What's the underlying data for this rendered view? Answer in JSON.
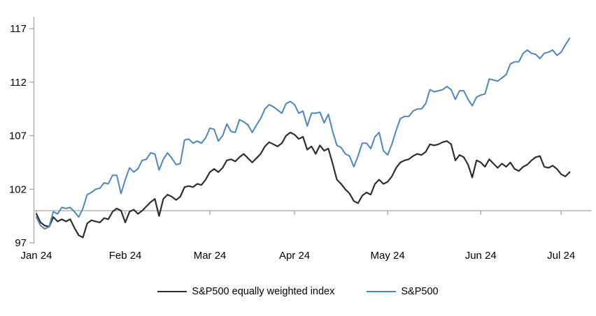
{
  "chart_data": {
    "type": "line",
    "title": "",
    "xlabel": "",
    "ylabel": "",
    "grid": false,
    "legend_position": "bottom",
    "background": "#ffffff",
    "axis_color": "#a6a6a6",
    "text_color": "#000000",
    "y_axis": {
      "tick_values": [
        97,
        102,
        107,
        112,
        117
      ],
      "tick_labels": [
        "97",
        "102",
        "107",
        "112",
        "117"
      ],
      "min": 96.9,
      "max": 118.1,
      "baseline_value": 100
    },
    "x_axis": {
      "tick_labels": [
        "Jan 24",
        "Feb 24",
        "Mar 24",
        "Apr 24",
        "May 24",
        "Jun 24",
        "Jul 24"
      ],
      "tick_point_indices": [
        0,
        21,
        41,
        61,
        83,
        105,
        124
      ]
    },
    "dates": [
      "01-02",
      "01-03",
      "01-04",
      "01-05",
      "01-08",
      "01-09",
      "01-10",
      "01-11",
      "01-12",
      "01-16",
      "01-17",
      "01-18",
      "01-19",
      "01-22",
      "01-23",
      "01-24",
      "01-25",
      "01-26",
      "01-29",
      "01-30",
      "01-31",
      "02-01",
      "02-02",
      "02-05",
      "02-06",
      "02-07",
      "02-08",
      "02-09",
      "02-12",
      "02-13",
      "02-14",
      "02-15",
      "02-16",
      "02-20",
      "02-21",
      "02-22",
      "02-23",
      "02-26",
      "02-27",
      "02-28",
      "02-29",
      "03-01",
      "03-04",
      "03-05",
      "03-06",
      "03-07",
      "03-08",
      "03-11",
      "03-12",
      "03-13",
      "03-14",
      "03-15",
      "03-18",
      "03-19",
      "03-20",
      "03-21",
      "03-22",
      "03-25",
      "03-26",
      "03-27",
      "03-28",
      "04-01",
      "04-02",
      "04-03",
      "04-04",
      "04-05",
      "04-08",
      "04-09",
      "04-10",
      "04-11",
      "04-12",
      "04-15",
      "04-16",
      "04-17",
      "04-18",
      "04-19",
      "04-22",
      "04-23",
      "04-24",
      "04-25",
      "04-26",
      "04-29",
      "04-30",
      "05-01",
      "05-02",
      "05-03",
      "05-06",
      "05-07",
      "05-08",
      "05-09",
      "05-10",
      "05-13",
      "05-14",
      "05-15",
      "05-16",
      "05-17",
      "05-20",
      "05-21",
      "05-22",
      "05-23",
      "05-24",
      "05-28",
      "05-29",
      "05-30",
      "05-31",
      "06-03",
      "06-04",
      "06-05",
      "06-06",
      "06-07",
      "06-10",
      "06-11",
      "06-12",
      "06-13",
      "06-14",
      "06-17",
      "06-18",
      "06-20",
      "06-21",
      "06-24",
      "06-25",
      "06-26",
      "06-27",
      "06-28",
      "07-01",
      "07-02",
      "07-03"
    ],
    "series": [
      {
        "name": "S&P500 equally weighted index",
        "color": "#2f2f2f",
        "stroke_width": 2.2,
        "values": [
          99.7,
          98.9,
          98.6,
          98.5,
          99.4,
          99.0,
          99.2,
          99.0,
          99.2,
          98.4,
          97.7,
          97.5,
          98.8,
          99.1,
          99.0,
          98.9,
          99.3,
          99.2,
          99.9,
          100.2,
          100.0,
          98.9,
          99.9,
          100.1,
          99.7,
          100.0,
          100.4,
          100.8,
          101.1,
          99.5,
          101.1,
          101.5,
          101.3,
          101.0,
          101.3,
          102.2,
          102.3,
          102.2,
          102.5,
          102.4,
          102.9,
          103.6,
          103.9,
          103.6,
          104.0,
          104.7,
          104.8,
          104.6,
          105.0,
          105.3,
          104.9,
          104.5,
          104.9,
          105.3,
          106.0,
          106.4,
          106.2,
          106.0,
          106.3,
          107.0,
          107.3,
          107.1,
          106.7,
          106.9,
          105.7,
          106.0,
          105.3,
          106.1,
          105.6,
          105.8,
          104.4,
          102.9,
          102.5,
          102.0,
          101.6,
          100.9,
          100.7,
          101.4,
          101.7,
          101.5,
          102.5,
          102.9,
          102.5,
          102.7,
          103.2,
          104.0,
          104.5,
          104.7,
          104.8,
          105.1,
          105.3,
          105.2,
          105.5,
          106.2,
          106.1,
          106.2,
          106.4,
          106.5,
          106.2,
          104.7,
          105.2,
          105.0,
          104.3,
          103.1,
          104.7,
          104.5,
          104.1,
          104.8,
          104.4,
          104.0,
          104.4,
          104.1,
          104.5,
          103.9,
          103.7,
          104.1,
          104.3,
          104.7,
          105.0,
          105.1,
          104.1,
          104.0,
          104.2,
          103.9,
          103.4,
          103.2,
          103.6
        ]
      },
      {
        "name": "S&P500",
        "color": "#4f86bd",
        "stroke_width": 2.0,
        "values": [
          99.4,
          98.6,
          98.3,
          98.5,
          99.9,
          99.7,
          100.3,
          100.2,
          100.3,
          99.9,
          99.4,
          100.2,
          101.5,
          101.7,
          102.0,
          102.1,
          102.6,
          102.5,
          103.3,
          103.3,
          101.6,
          102.9,
          104.0,
          103.6,
          103.9,
          104.7,
          104.8,
          105.4,
          105.3,
          103.8,
          104.8,
          105.4,
          104.9,
          104.3,
          104.4,
          106.6,
          106.7,
          106.3,
          106.5,
          106.3,
          106.8,
          107.7,
          107.6,
          106.5,
          107.0,
          108.1,
          107.4,
          107.3,
          108.5,
          108.3,
          108.0,
          107.3,
          108.0,
          108.6,
          109.5,
          109.9,
          109.7,
          109.4,
          109.1,
          110.0,
          110.2,
          109.9,
          109.1,
          109.3,
          107.9,
          109.1,
          109.1,
          109.2,
          108.2,
          109.0,
          107.4,
          106.1,
          105.9,
          105.3,
          105.1,
          104.1,
          105.1,
          106.3,
          106.3,
          105.8,
          106.9,
          107.3,
          105.6,
          105.2,
          106.2,
          107.5,
          108.6,
          108.8,
          108.8,
          109.3,
          109.5,
          109.5,
          110.0,
          111.3,
          111.1,
          111.2,
          111.3,
          111.6,
          111.3,
          110.4,
          111.2,
          111.2,
          110.4,
          109.8,
          110.6,
          110.8,
          110.9,
          112.3,
          112.2,
          112.1,
          112.4,
          112.7,
          113.7,
          113.9,
          113.9,
          114.7,
          115.0,
          114.7,
          114.6,
          114.2,
          114.7,
          114.8,
          115.0,
          114.5,
          114.8,
          115.5,
          116.1
        ]
      }
    ]
  },
  "legend": {
    "items": [
      {
        "label": "S&P500 equally weighted index"
      },
      {
        "label": "S&P500"
      }
    ]
  }
}
